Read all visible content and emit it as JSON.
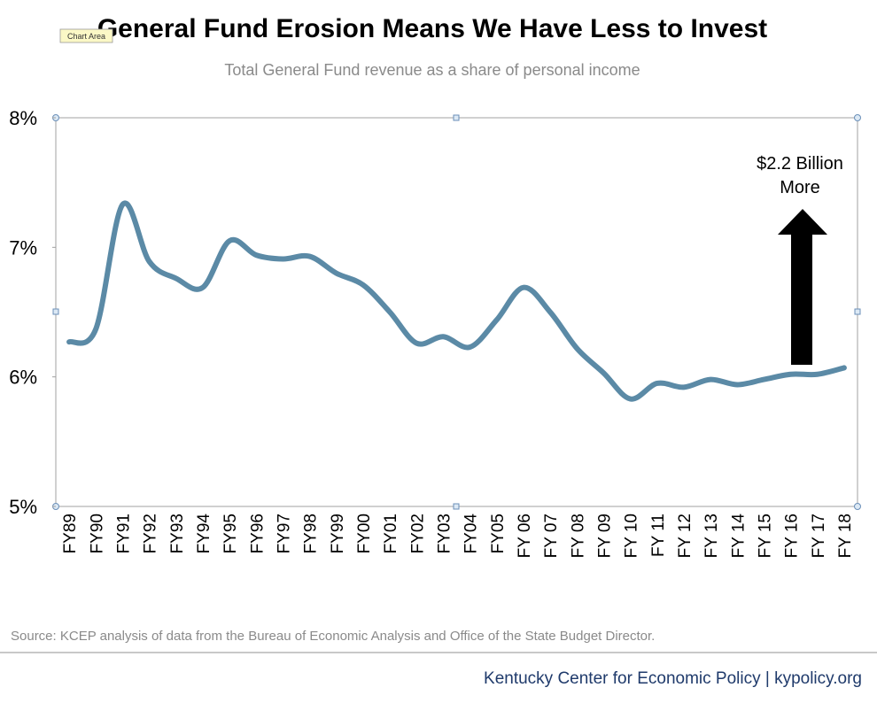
{
  "chart_data": {
    "type": "line",
    "title": "General Fund Erosion Means We Have Less to Invest",
    "subtitle": "Total General Fund revenue as a share of personal income",
    "tooltip": "Chart Area",
    "categories": [
      "FY89",
      "FY90",
      "FY91",
      "FY92",
      "FY93",
      "FY94",
      "FY95",
      "FY96",
      "FY97",
      "FY98",
      "FY99",
      "FY00",
      "FY01",
      "FY02",
      "FY03",
      "FY04",
      "FY05",
      "FY 06",
      "FY 07",
      "FY 08",
      "FY 09",
      "FY 10",
      "FY 11",
      "FY 12",
      "FY 13",
      "FY 14",
      "FY 15",
      "FY 16",
      "FY 17",
      "FY 18"
    ],
    "series": [
      {
        "color": "#5b8aa6",
        "values": [
          6.27,
          6.37,
          7.33,
          6.89,
          6.76,
          6.69,
          7.05,
          6.94,
          6.91,
          6.93,
          6.8,
          6.71,
          6.5,
          6.26,
          6.31,
          6.23,
          6.44,
          6.69,
          6.5,
          6.22,
          6.03,
          5.83,
          5.95,
          5.92,
          5.98,
          5.94,
          5.98,
          6.02,
          6.02,
          6.07
        ]
      }
    ],
    "ylim": [
      5,
      8
    ],
    "yticks": [
      {
        "value": 5,
        "label": "5%"
      },
      {
        "value": 6,
        "label": "6%"
      },
      {
        "value": 7,
        "label": "7%"
      },
      {
        "value": 8,
        "label": "8%"
      }
    ],
    "annotation": [
      "$2.2 Billion",
      "More"
    ],
    "source": "Source: KCEP analysis of data from the Bureau of Economic Analysis and Office of the State Budget Director.",
    "footer": "Kentucky Center for Economic Policy | kypolicy.org"
  }
}
